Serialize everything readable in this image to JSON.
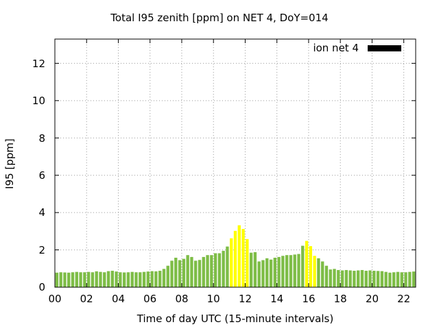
{
  "chart_data": {
    "type": "bar",
    "title": "Total I95 zenith [ppm] on NET 4, DoY=014",
    "xlabel": "Time of day UTC (15-minute intervals)",
    "ylabel": "I95 [ppm]",
    "xlim": [
      0,
      22.75
    ],
    "ylim": [
      0,
      13.3
    ],
    "x_ticks": [
      0,
      2,
      4,
      6,
      8,
      10,
      12,
      14,
      16,
      18,
      20,
      22
    ],
    "x_tick_labels": [
      "00",
      "02",
      "04",
      "06",
      "08",
      "10",
      "12",
      "14",
      "16",
      "18",
      "20",
      "22"
    ],
    "y_ticks": [
      0,
      2,
      4,
      6,
      8,
      10,
      12
    ],
    "y_tick_labels": [
      "0",
      "2",
      "4",
      "6",
      "8",
      "10",
      "12"
    ],
    "grid": true,
    "legend": {
      "position": "top-right",
      "entries": [
        {
          "label": "ion net 4",
          "color": "#000000"
        }
      ]
    },
    "bar_interval_hours": 0.25,
    "values": [
      0.78,
      0.8,
      0.79,
      0.78,
      0.8,
      0.82,
      0.8,
      0.8,
      0.82,
      0.8,
      0.85,
      0.82,
      0.8,
      0.86,
      0.88,
      0.84,
      0.8,
      0.79,
      0.8,
      0.82,
      0.8,
      0.8,
      0.82,
      0.84,
      0.86,
      0.85,
      0.88,
      0.98,
      1.15,
      1.42,
      1.58,
      1.45,
      1.52,
      1.72,
      1.62,
      1.42,
      1.46,
      1.62,
      1.72,
      1.72,
      1.82,
      1.82,
      1.95,
      2.18,
      2.62,
      3.02,
      3.32,
      3.12,
      2.58,
      1.85,
      1.88,
      1.38,
      1.45,
      1.55,
      1.48,
      1.58,
      1.62,
      1.68,
      1.72,
      1.72,
      1.75,
      1.78,
      2.22,
      2.48,
      2.2,
      1.68,
      1.55,
      1.38,
      1.15,
      0.95,
      0.98,
      0.92,
      0.9,
      0.92,
      0.9,
      0.88,
      0.9,
      0.92,
      0.88,
      0.9,
      0.88,
      0.87,
      0.86,
      0.82,
      0.78,
      0.8,
      0.82,
      0.8,
      0.8,
      0.82,
      0.84
    ],
    "highlight_indices": [
      44,
      45,
      46,
      47,
      48,
      63,
      64,
      65
    ],
    "colors": {
      "bar": "#7ebd47",
      "highlight": "#ffff00",
      "legend": "#000000",
      "grid": "#999999"
    }
  }
}
